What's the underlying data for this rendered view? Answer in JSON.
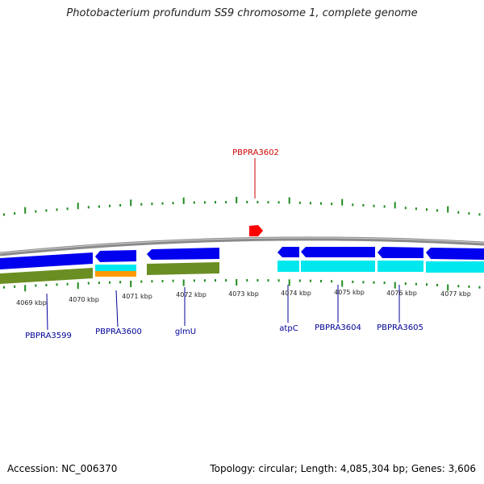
{
  "title": "Photobacterium profundum SS9 chromosome 1, complete genome",
  "footer": {
    "accession": "Accession: NC_006370",
    "summary": "Topology: circular; Length: 4,085,304 bp; Genes: 3,606"
  },
  "colors": {
    "backbone": "#8a8a8a",
    "cds_forward": "#0000ee",
    "gene_cyan": "#00e8ee",
    "gene_olive": "#6b8e23",
    "gene_orange": "#ff9900",
    "tick_green": "#1e8a1e",
    "label_blue": "#000099",
    "label_red": "#cc0000",
    "marker_red": "#ff0000"
  },
  "scale": {
    "tick_labels": [
      "4069 kbp",
      "4070 kbp",
      "4071 kbp",
      "4072 kbp",
      "4073 kbp",
      "4074 kbp",
      "4075 kbp",
      "4076 kbp",
      "4077 kbp"
    ]
  },
  "gene_labels": [
    {
      "text": "PBPRA3599",
      "color": "#000099"
    },
    {
      "text": "PBPRA3600",
      "color": "#000099"
    },
    {
      "text": "glmU",
      "color": "#000099"
    },
    {
      "text": "atpC",
      "color": "#000099"
    },
    {
      "text": "PBPRA3604",
      "color": "#000099"
    },
    {
      "text": "PBPRA3605",
      "color": "#000099"
    },
    {
      "text": "PBPRA3602",
      "color": "#cc0000"
    }
  ]
}
